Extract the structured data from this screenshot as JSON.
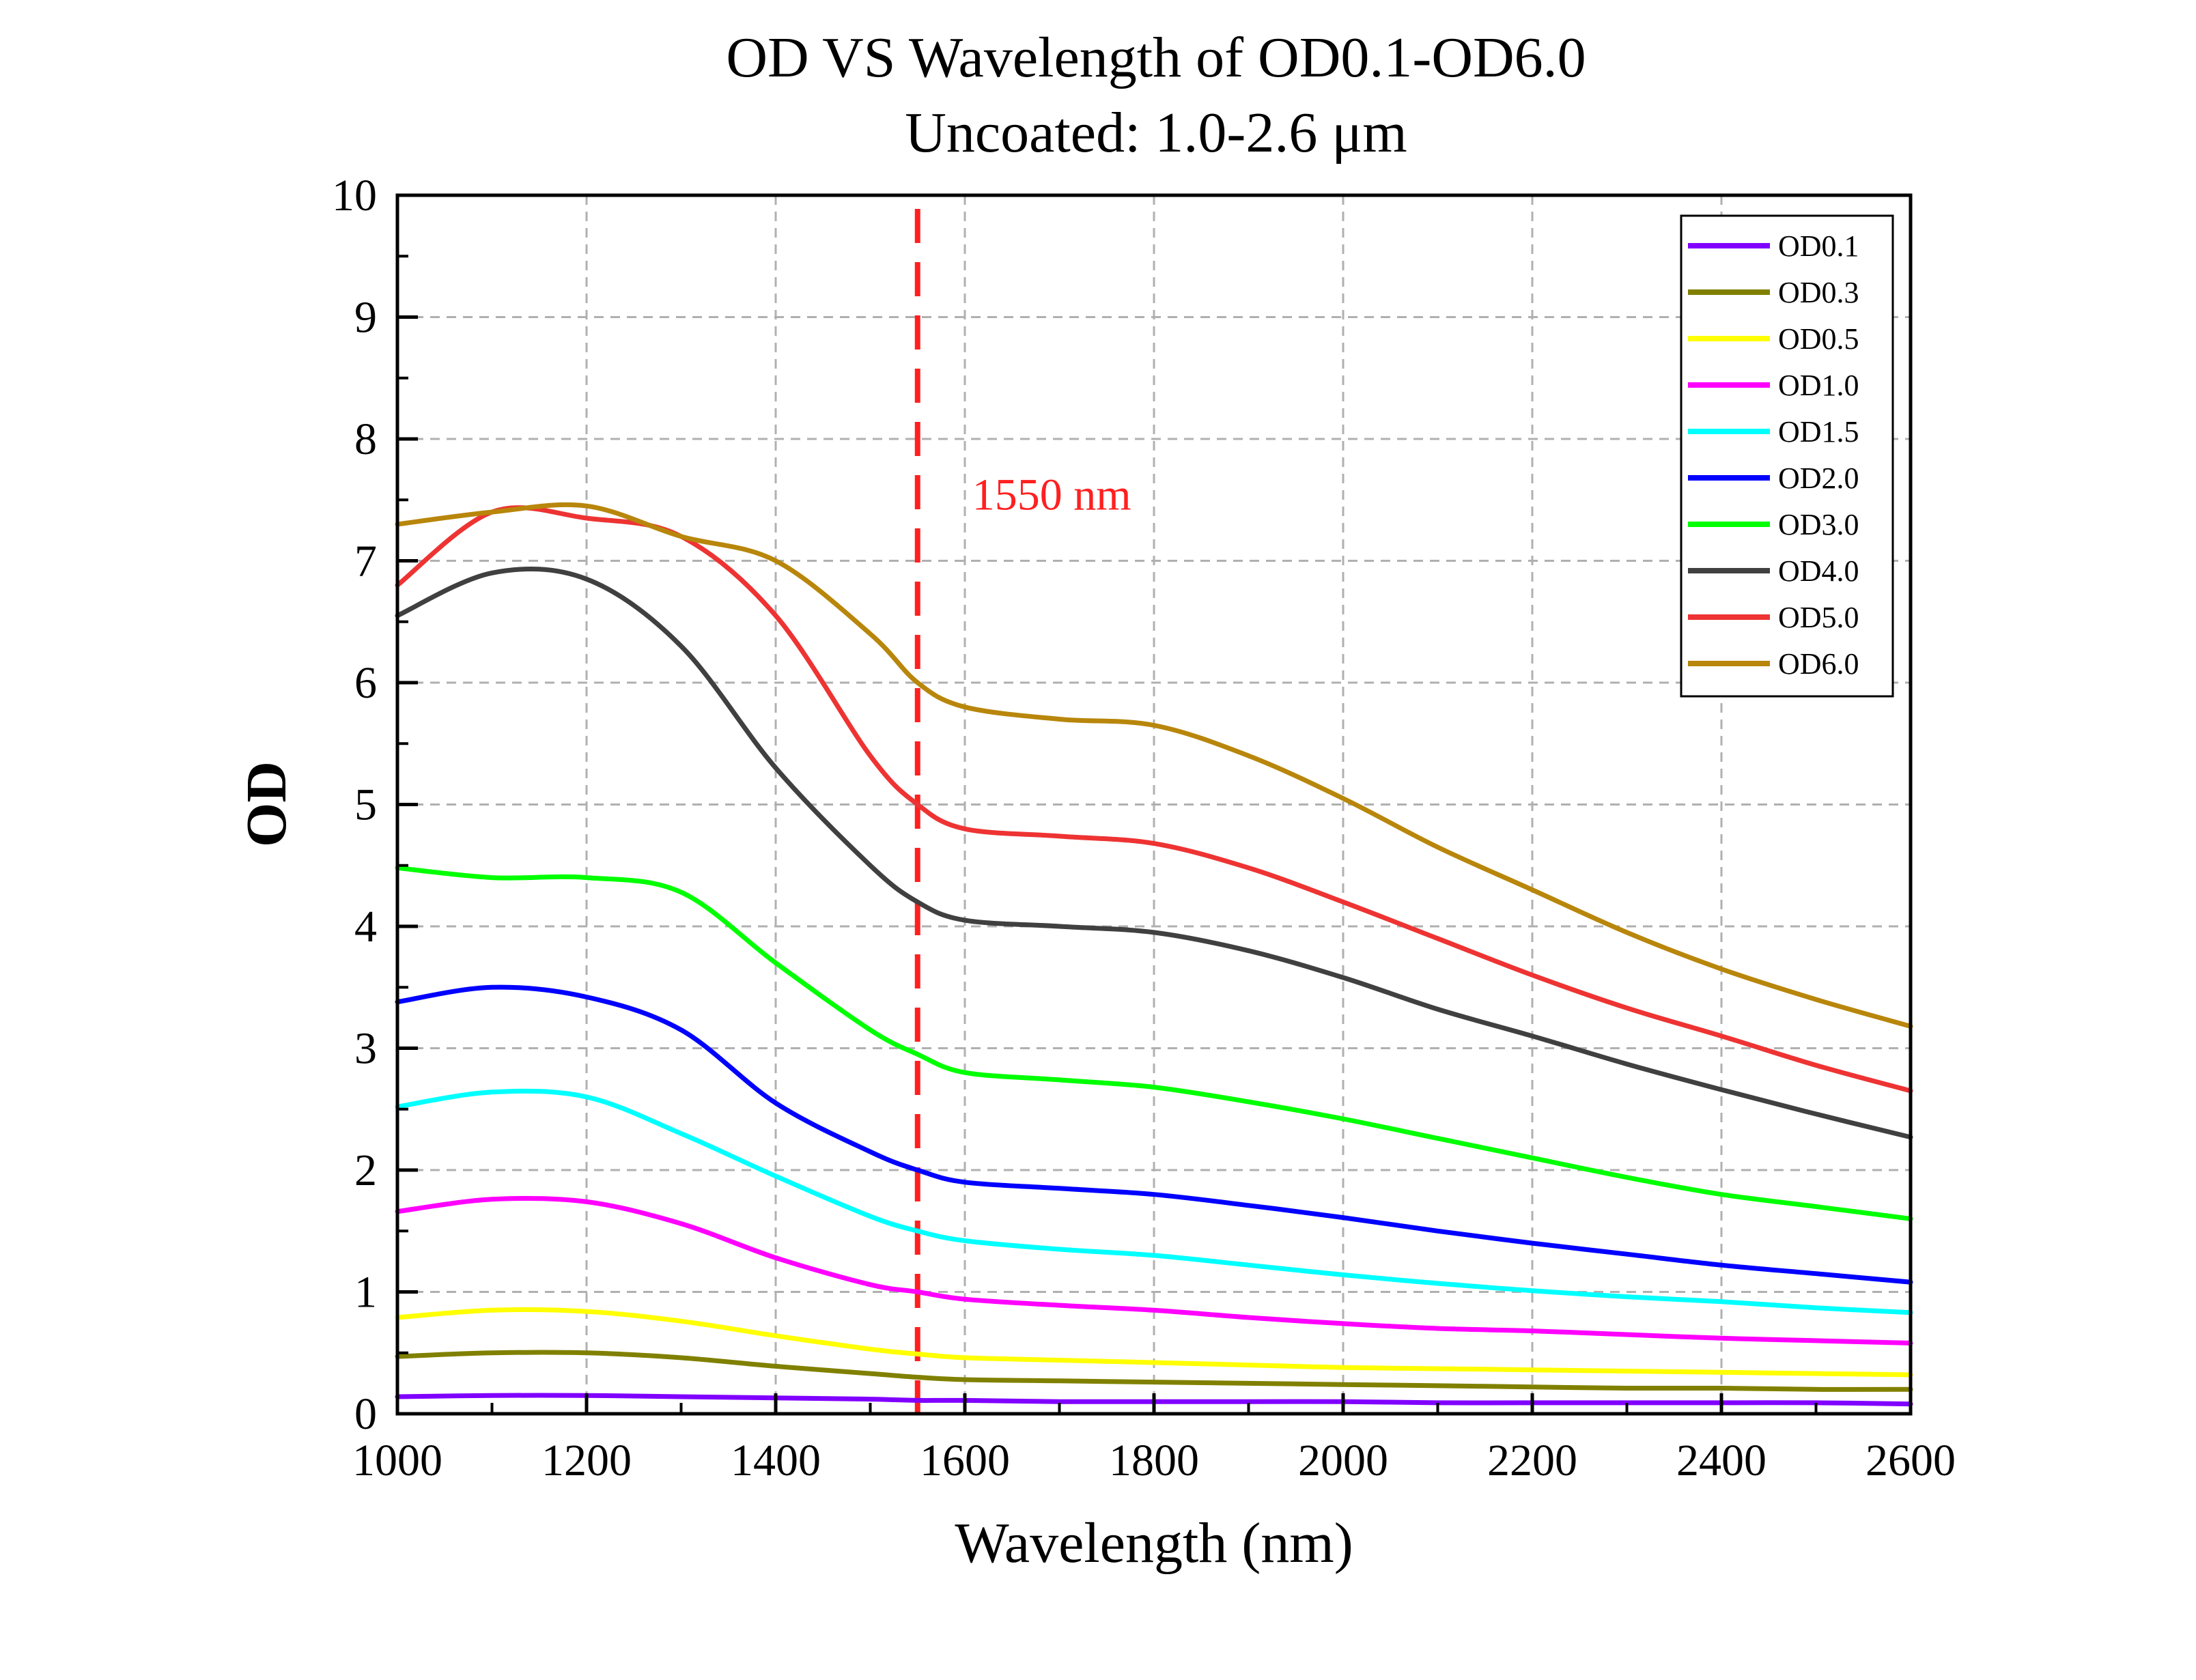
{
  "chart_data": {
    "type": "line",
    "title": "OD VS Wavelength of OD0.1-OD6.0",
    "subtitle": "Uncoated: 1.0-2.6 μm",
    "xlabel": "Wavelength (nm)",
    "ylabel": "OD",
    "xlim": [
      1000,
      2600
    ],
    "ylim": [
      0,
      10
    ],
    "x_ticks": [
      "1000",
      "1200",
      "1400",
      "1600",
      "1800",
      "2000",
      "2200",
      "2400",
      "2600"
    ],
    "y_ticks": [
      "0",
      "1",
      "2",
      "3",
      "4",
      "5",
      "6",
      "7",
      "8",
      "9",
      "10"
    ],
    "grid": true,
    "legend_position": "top-right",
    "reference_line": {
      "x": 1550,
      "label": "1550 nm",
      "color": "#ff2020",
      "style": "dashed"
    },
    "x": [
      1000,
      1100,
      1200,
      1300,
      1400,
      1500,
      1550,
      1600,
      1700,
      1800,
      1900,
      2000,
      2100,
      2200,
      2300,
      2400,
      2500,
      2600
    ],
    "series": [
      {
        "name": "OD0.1",
        "color": "#8000ff",
        "values": [
          0.14,
          0.15,
          0.15,
          0.14,
          0.13,
          0.12,
          0.11,
          0.11,
          0.1,
          0.1,
          0.1,
          0.1,
          0.09,
          0.09,
          0.09,
          0.09,
          0.09,
          0.08
        ]
      },
      {
        "name": "OD0.3",
        "color": "#808000",
        "values": [
          0.47,
          0.5,
          0.5,
          0.46,
          0.39,
          0.33,
          0.3,
          0.28,
          0.27,
          0.26,
          0.25,
          0.24,
          0.23,
          0.22,
          0.21,
          0.21,
          0.2,
          0.2
        ]
      },
      {
        "name": "OD0.5",
        "color": "#ffff00",
        "values": [
          0.79,
          0.85,
          0.84,
          0.76,
          0.64,
          0.53,
          0.49,
          0.46,
          0.44,
          0.42,
          0.4,
          0.38,
          0.37,
          0.36,
          0.35,
          0.34,
          0.33,
          0.32
        ]
      },
      {
        "name": "OD1.0",
        "color": "#ff00ff",
        "values": [
          1.66,
          1.76,
          1.74,
          1.56,
          1.28,
          1.06,
          1.0,
          0.94,
          0.89,
          0.85,
          0.79,
          0.74,
          0.7,
          0.68,
          0.65,
          0.62,
          0.6,
          0.58
        ]
      },
      {
        "name": "OD1.5",
        "color": "#00ffff",
        "values": [
          2.52,
          2.64,
          2.6,
          2.3,
          1.95,
          1.62,
          1.5,
          1.42,
          1.35,
          1.3,
          1.22,
          1.14,
          1.07,
          1.01,
          0.96,
          0.92,
          0.87,
          0.83
        ]
      },
      {
        "name": "OD2.0",
        "color": "#0000ff",
        "values": [
          3.38,
          3.5,
          3.42,
          3.15,
          2.55,
          2.15,
          2.0,
          1.9,
          1.85,
          1.8,
          1.71,
          1.61,
          1.5,
          1.4,
          1.31,
          1.22,
          1.15,
          1.08
        ]
      },
      {
        "name": "OD3.0",
        "color": "#00ff00",
        "values": [
          4.48,
          4.4,
          4.4,
          4.28,
          3.7,
          3.15,
          2.95,
          2.8,
          2.74,
          2.68,
          2.56,
          2.42,
          2.26,
          2.1,
          1.94,
          1.8,
          1.7,
          1.6
        ]
      },
      {
        "name": "OD4.0",
        "color": "#404040",
        "values": [
          6.55,
          6.9,
          6.85,
          6.3,
          5.3,
          4.5,
          4.2,
          4.05,
          4.0,
          3.95,
          3.8,
          3.58,
          3.32,
          3.1,
          2.87,
          2.66,
          2.46,
          2.27
        ]
      },
      {
        "name": "OD5.0",
        "color": "#ee3333",
        "values": [
          6.8,
          7.4,
          7.35,
          7.2,
          6.55,
          5.4,
          5.0,
          4.8,
          4.74,
          4.68,
          4.48,
          4.2,
          3.9,
          3.6,
          3.33,
          3.1,
          2.86,
          2.65
        ]
      },
      {
        "name": "OD6.0",
        "color": "#b8860b",
        "values": [
          7.3,
          7.4,
          7.45,
          7.2,
          7.0,
          6.4,
          6.0,
          5.8,
          5.7,
          5.65,
          5.4,
          5.05,
          4.65,
          4.3,
          3.95,
          3.65,
          3.4,
          3.18
        ]
      }
    ]
  }
}
